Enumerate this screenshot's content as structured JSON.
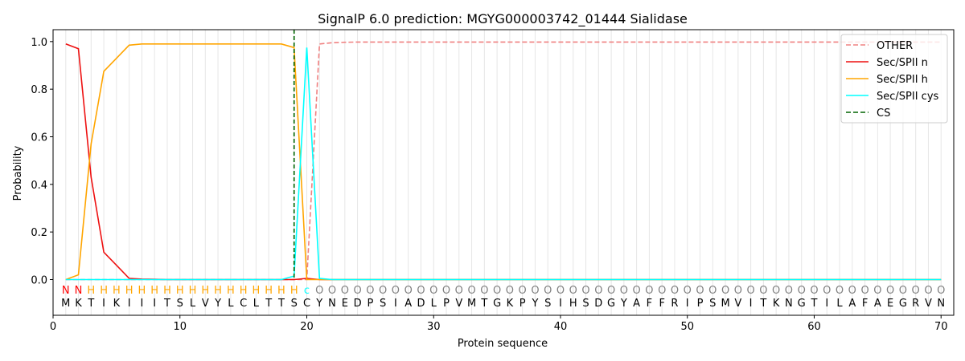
{
  "chart_data": {
    "type": "line",
    "title": "SignalP 6.0 prediction: MGYG000003742_01444 Sialidase",
    "xlabel": "Protein sequence",
    "ylabel": "Probability",
    "xlim": [
      0,
      71
    ],
    "ylim": [
      -0.15,
      1.05
    ],
    "x_ticks": [
      0,
      10,
      20,
      30,
      40,
      50,
      60,
      70
    ],
    "y_ticks": [
      0.0,
      0.2,
      0.4,
      0.6,
      0.8,
      1.0
    ],
    "x_tick_labels": [
      "0",
      "10",
      "20",
      "30",
      "40",
      "50",
      "60",
      "70"
    ],
    "y_tick_labels": [
      "0.0",
      "0.2",
      "0.4",
      "0.6",
      "0.8",
      "1.0"
    ],
    "grid": "vertical lines at each residue",
    "legend_position": "top-right",
    "sequence": [
      "M",
      "K",
      "T",
      "I",
      "K",
      "I",
      "I",
      "I",
      "T",
      "S",
      "L",
      "V",
      "Y",
      "L",
      "C",
      "L",
      "T",
      "T",
      "S",
      "C",
      "Y",
      "N",
      "E",
      "D",
      "P",
      "S",
      "I",
      "A",
      "D",
      "L",
      "P",
      "V",
      "M",
      "T",
      "G",
      "K",
      "P",
      "Y",
      "S",
      "I",
      "H",
      "S",
      "D",
      "G",
      "Y",
      "A",
      "F",
      "F",
      "R",
      "I",
      "P",
      "S",
      "M",
      "V",
      "I",
      "T",
      "K",
      "N",
      "G",
      "T",
      "I",
      "L",
      "A",
      "F",
      "A",
      "E",
      "G",
      "R",
      "V",
      "N"
    ],
    "region_labels": [
      "N",
      "N",
      "H",
      "H",
      "H",
      "H",
      "H",
      "H",
      "H",
      "H",
      "H",
      "H",
      "H",
      "H",
      "H",
      "H",
      "H",
      "H",
      "H",
      "C",
      "O",
      "O",
      "O",
      "O",
      "O",
      "O",
      "O",
      "O",
      "O",
      "O",
      "O",
      "O",
      "O",
      "O",
      "O",
      "O",
      "O",
      "O",
      "O",
      "O",
      "O",
      "O",
      "O",
      "O",
      "O",
      "O",
      "O",
      "O",
      "O",
      "O",
      "O",
      "O",
      "O",
      "O",
      "O",
      "O",
      "O",
      "O",
      "O",
      "O",
      "O",
      "O",
      "O",
      "O",
      "O",
      "O",
      "O",
      "O",
      "O",
      "O"
    ],
    "region_label_text": [
      "N",
      "N",
      "H",
      "H",
      "H",
      "H",
      "H",
      "H",
      "H",
      "H",
      "H",
      "H",
      "H",
      "H",
      "H",
      "H",
      "H",
      "H",
      "H",
      "c",
      "O",
      "O",
      "O",
      "O",
      "O",
      "O",
      "O",
      "O",
      "O",
      "O",
      "O",
      "O",
      "O",
      "O",
      "O",
      "O",
      "O",
      "O",
      "O",
      "O",
      "O",
      "O",
      "O",
      "O",
      "O",
      "O",
      "O",
      "O",
      "O",
      "O",
      "O",
      "O",
      "O",
      "O",
      "O",
      "O",
      "O",
      "O",
      "O",
      "O",
      "O",
      "O",
      "O",
      "O",
      "O",
      "O",
      "O",
      "O",
      "O",
      "O"
    ],
    "region_colors": {
      "N": "#ff0000",
      "H": "#ffa500",
      "C": "#00ffff",
      "O": "#808080"
    },
    "cs_position": 19,
    "series": [
      {
        "name": "OTHER",
        "color": "#f08080",
        "dash": "dashed",
        "values": [
          0.0,
          0.0,
          0.0,
          0.0,
          0.0,
          0.0,
          0.0,
          0.0,
          0.0,
          0.0,
          0.0,
          0.0,
          0.0,
          0.0,
          0.0,
          0.0,
          0.0,
          0.0,
          0.0,
          0.0,
          0.99,
          0.995,
          0.997,
          0.998,
          0.998,
          0.998,
          0.998,
          0.998,
          0.998,
          0.998,
          0.998,
          0.998,
          0.998,
          0.998,
          0.998,
          0.998,
          0.998,
          0.998,
          0.998,
          0.998,
          0.998,
          0.998,
          0.998,
          0.998,
          0.998,
          0.998,
          0.998,
          0.998,
          0.998,
          0.998,
          0.998,
          0.998,
          0.998,
          0.998,
          0.998,
          0.998,
          0.998,
          0.998,
          0.998,
          0.998,
          0.998,
          0.998,
          0.998,
          0.998,
          0.998,
          0.998,
          0.998,
          0.998,
          0.998,
          0.998
        ]
      },
      {
        "name": "Sec/SPII n",
        "color": "#ee1111",
        "dash": "solid",
        "values": [
          0.99,
          0.97,
          0.43,
          0.115,
          0.06,
          0.005,
          0.002,
          0.001,
          0.0,
          0.0,
          0.0,
          0.0,
          0.0,
          0.0,
          0.0,
          0.0,
          0.0,
          0.0,
          0.0,
          0.005,
          0.0,
          0.0,
          0.0,
          0.0,
          0.0,
          0.0,
          0.0,
          0.0,
          0.0,
          0.0,
          0.0,
          0.0,
          0.0,
          0.0,
          0.0,
          0.0,
          0.0,
          0.0,
          0.0,
          0.0,
          0.0,
          0.0,
          0.0,
          0.0,
          0.0,
          0.0,
          0.0,
          0.0,
          0.0,
          0.0,
          0.0,
          0.0,
          0.0,
          0.0,
          0.0,
          0.0,
          0.0,
          0.0,
          0.0,
          0.0,
          0.0,
          0.0,
          0.0,
          0.0,
          0.0,
          0.0,
          0.0,
          0.0,
          0.0,
          0.0
        ]
      },
      {
        "name": "Sec/SPII h",
        "color": "#ffa500",
        "dash": "solid",
        "values": [
          0.0,
          0.02,
          0.57,
          0.875,
          0.93,
          0.985,
          0.99,
          0.99,
          0.99,
          0.99,
          0.99,
          0.99,
          0.99,
          0.99,
          0.99,
          0.99,
          0.99,
          0.99,
          0.975,
          0.0,
          0.0,
          0.0,
          0.0,
          0.0,
          0.0,
          0.0,
          0.0,
          0.0,
          0.0,
          0.0,
          0.0,
          0.0,
          0.0,
          0.0,
          0.0,
          0.0,
          0.0,
          0.0,
          0.0,
          0.0,
          0.0,
          0.0,
          0.0,
          0.0,
          0.0,
          0.0,
          0.0,
          0.0,
          0.0,
          0.0,
          0.0,
          0.0,
          0.0,
          0.0,
          0.0,
          0.0,
          0.0,
          0.0,
          0.0,
          0.0,
          0.0,
          0.0,
          0.0,
          0.0,
          0.0,
          0.0,
          0.0,
          0.0,
          0.0,
          0.0
        ]
      },
      {
        "name": "Sec/SPII cys",
        "color": "#00ffff",
        "dash": "solid",
        "values": [
          0.0,
          0.0,
          0.0,
          0.0,
          0.0,
          0.0,
          0.0,
          0.0,
          0.0,
          0.0,
          0.0,
          0.0,
          0.0,
          0.0,
          0.0,
          0.0,
          0.0,
          0.0,
          0.015,
          0.975,
          0.005,
          0.0,
          0.0,
          0.0,
          0.0,
          0.0,
          0.0,
          0.0,
          0.0,
          0.0,
          0.0,
          0.0,
          0.0,
          0.0,
          0.0,
          0.0,
          0.0,
          0.0,
          0.0,
          0.0,
          0.0,
          0.0,
          0.0,
          0.0,
          0.0,
          0.0,
          0.0,
          0.0,
          0.0,
          0.0,
          0.0,
          0.0,
          0.0,
          0.0,
          0.0,
          0.0,
          0.0,
          0.0,
          0.0,
          0.0,
          0.0,
          0.0,
          0.0,
          0.0,
          0.0,
          0.0,
          0.0,
          0.0,
          0.0,
          0.0
        ]
      },
      {
        "name": "CS",
        "color": "#006400",
        "dash": "dashed",
        "values": []
      }
    ]
  }
}
